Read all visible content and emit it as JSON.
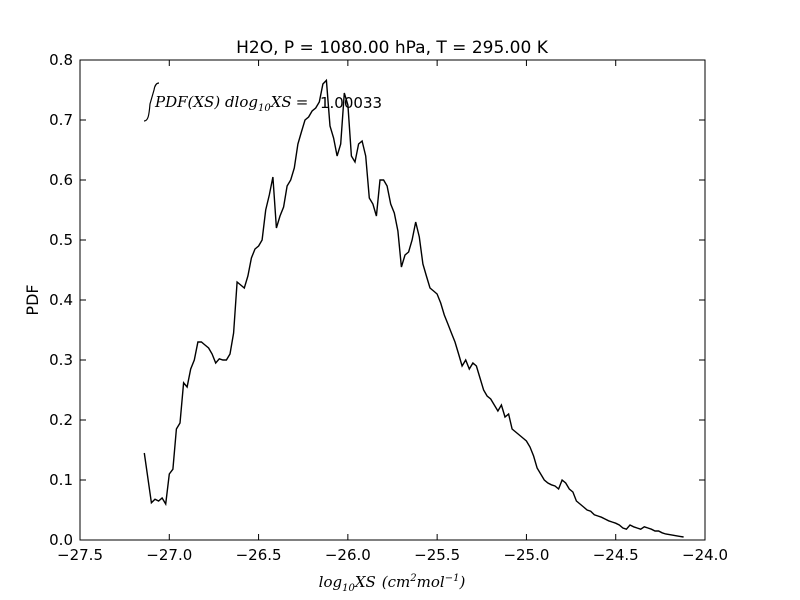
{
  "chart_data": {
    "type": "line",
    "title": "H2O, P = 1080.00 hPa, T = 295.00 K",
    "xlabel_main": "log",
    "xlabel_sub": "10",
    "xlabel_var": "XS",
    "xlabel_unit_open": "(cm",
    "xlabel_unit_sup1": "2",
    "xlabel_unit_mid": "mol",
    "xlabel_unit_sup2": "−1",
    "xlabel_unit_close": ")",
    "ylabel": "PDF",
    "xlim": [
      -27.5,
      -24.0
    ],
    "ylim": [
      0.0,
      0.8
    ],
    "xticks": [
      -27.5,
      -27.0,
      -26.5,
      -26.0,
      -25.5,
      -25.0,
      -24.5,
      -24.0
    ],
    "xtick_labels": [
      "−27.5",
      "−27.0",
      "−26.5",
      "−26.0",
      "−25.5",
      "−25.0",
      "−24.5",
      "−24.0"
    ],
    "yticks": [
      0.0,
      0.1,
      0.2,
      0.3,
      0.4,
      0.5,
      0.6,
      0.7,
      0.8
    ],
    "ytick_labels": [
      "0.0",
      "0.1",
      "0.2",
      "0.3",
      "0.4",
      "0.5",
      "0.6",
      "0.7",
      "0.8"
    ],
    "grid": false,
    "line_color": "#000000",
    "annotation": {
      "integrand": "PDF(XS) dlog",
      "integrand_sub": "10",
      "integrand_var": "XS",
      "equals": "=",
      "value": "1.00033"
    },
    "series": [
      {
        "x": [
          -27.14,
          -27.1,
          -27.08,
          -27.06,
          -27.04,
          -27.02,
          -27.0,
          -26.98,
          -26.96,
          -26.94,
          -26.92,
          -26.9,
          -26.88,
          -26.86,
          -26.84,
          -26.82,
          -26.8,
          -26.78,
          -26.76,
          -26.74,
          -26.72,
          -26.7,
          -26.68,
          -26.66,
          -26.64,
          -26.62,
          -26.6,
          -26.58,
          -26.56,
          -26.54,
          -26.52,
          -26.5,
          -26.48,
          -26.46,
          -26.44,
          -26.42,
          -26.4,
          -26.38,
          -26.36,
          -26.34,
          -26.32,
          -26.3,
          -26.28,
          -26.26,
          -26.24,
          -26.22,
          -26.2,
          -26.18,
          -26.16,
          -26.14,
          -26.12,
          -26.1,
          -26.08,
          -26.06,
          -26.04,
          -26.02,
          -26.0,
          -25.98,
          -25.96,
          -25.94,
          -25.92,
          -25.9,
          -25.88,
          -25.86,
          -25.84,
          -25.82,
          -25.8,
          -25.78,
          -25.76,
          -25.74,
          -25.72,
          -25.7,
          -25.68,
          -25.66,
          -25.64,
          -25.62,
          -25.6,
          -25.58,
          -25.56,
          -25.54,
          -25.52,
          -25.5,
          -25.48,
          -25.46,
          -25.44,
          -25.42,
          -25.4,
          -25.38,
          -25.36,
          -25.34,
          -25.32,
          -25.3,
          -25.28,
          -25.26,
          -25.24,
          -25.22,
          -25.2,
          -25.18,
          -25.16,
          -25.14,
          -25.12,
          -25.1,
          -25.08,
          -25.06,
          -25.04,
          -25.02,
          -25.0,
          -24.98,
          -24.96,
          -24.94,
          -24.92,
          -24.9,
          -24.88,
          -24.86,
          -24.84,
          -24.82,
          -24.8,
          -24.78,
          -24.76,
          -24.74,
          -24.72,
          -24.7,
          -24.68,
          -24.66,
          -24.64,
          -24.62,
          -24.6,
          -24.58,
          -24.56,
          -24.54,
          -24.52,
          -24.5,
          -24.48,
          -24.46,
          -24.44,
          -24.42,
          -24.4,
          -24.38,
          -24.36,
          -24.34,
          -24.32,
          -24.3,
          -24.28,
          -24.26,
          -24.24,
          -24.22,
          -24.2,
          -24.18,
          -24.16,
          -24.14,
          -24.12
        ],
        "y": [
          0.145,
          0.062,
          0.068,
          0.065,
          0.07,
          0.06,
          0.11,
          0.118,
          0.185,
          0.195,
          0.262,
          0.255,
          0.285,
          0.3,
          0.33,
          0.33,
          0.325,
          0.32,
          0.31,
          0.295,
          0.302,
          0.3,
          0.3,
          0.31,
          0.345,
          0.43,
          0.425,
          0.42,
          0.44,
          0.47,
          0.485,
          0.49,
          0.5,
          0.55,
          0.575,
          0.605,
          0.52,
          0.54,
          0.555,
          0.59,
          0.6,
          0.62,
          0.66,
          0.68,
          0.7,
          0.705,
          0.715,
          0.72,
          0.73,
          0.76,
          0.766,
          0.69,
          0.67,
          0.64,
          0.66,
          0.745,
          0.725,
          0.64,
          0.63,
          0.66,
          0.665,
          0.64,
          0.57,
          0.56,
          0.54,
          0.6,
          0.6,
          0.59,
          0.56,
          0.545,
          0.515,
          0.455,
          0.475,
          0.48,
          0.5,
          0.53,
          0.505,
          0.46,
          0.44,
          0.42,
          0.415,
          0.41,
          0.395,
          0.375,
          0.36,
          0.345,
          0.33,
          0.31,
          0.29,
          0.3,
          0.285,
          0.295,
          0.29,
          0.27,
          0.25,
          0.24,
          0.235,
          0.225,
          0.215,
          0.225,
          0.205,
          0.21,
          0.185,
          0.18,
          0.175,
          0.17,
          0.165,
          0.155,
          0.14,
          0.12,
          0.11,
          0.1,
          0.095,
          0.092,
          0.09,
          0.085,
          0.1,
          0.095,
          0.085,
          0.08,
          0.065,
          0.06,
          0.055,
          0.05,
          0.048,
          0.042,
          0.04,
          0.038,
          0.035,
          0.032,
          0.03,
          0.028,
          0.025,
          0.02,
          0.018,
          0.025,
          0.022,
          0.02,
          0.018,
          0.022,
          0.02,
          0.018,
          0.015,
          0.015,
          0.012,
          0.01,
          0.009,
          0.008,
          0.007,
          0.006,
          0.005
        ]
      }
    ]
  }
}
